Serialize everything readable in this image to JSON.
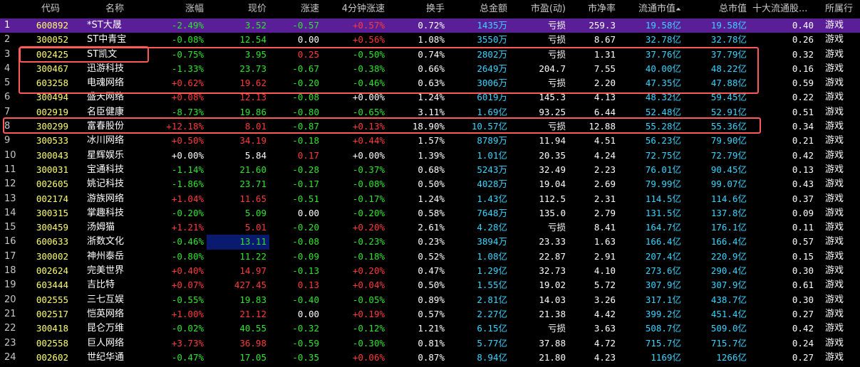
{
  "columns": {
    "code": "代码",
    "name": "名称",
    "pct": "涨幅",
    "price": "现价",
    "speed": "涨速",
    "speed4": "4分钟涨速",
    "turnover": "换手",
    "amount": "总金额",
    "pe": "市盈(动)",
    "pb": "市净率",
    "float_cap": "流通市值",
    "float_cap_sort": "⏶",
    "total_cap": "总市值",
    "top10": "十大流通股...",
    "industry": "所属行"
  },
  "rows": [
    {
      "idx": "1",
      "code": "600892",
      "name": "*ST大晟",
      "pct": "-2.49%",
      "pct_c": "green",
      "price": "3.52",
      "price_c": "green",
      "speed": "-0.57",
      "speed_c": "green",
      "speed4": "+0.57%",
      "speed4_c": "red",
      "turnover": "0.72%",
      "amount": "1435",
      "amount_u": "万",
      "pe": "亏损",
      "pb": "259.3",
      "float_cap": "19.58",
      "float_u": "亿",
      "total_cap": "19.58",
      "total_u": "亿",
      "top10": "0.40",
      "industry": "游戏"
    },
    {
      "idx": "2",
      "code": "300052",
      "name": "ST中青宝",
      "pct": "-0.08%",
      "pct_c": "green",
      "price": "12.54",
      "price_c": "green",
      "speed": "0.00",
      "speed_c": "white",
      "speed4": "+0.56%",
      "speed4_c": "red",
      "turnover": "1.08%",
      "amount": "3550",
      "amount_u": "万",
      "pe": "亏损",
      "pb": "8.67",
      "float_cap": "32.78",
      "float_u": "亿",
      "total_cap": "32.78",
      "total_u": "亿",
      "top10": "0.26",
      "industry": "游戏"
    },
    {
      "idx": "3",
      "code": "002425",
      "name": "ST凯文",
      "pct": "-0.75%",
      "pct_c": "green",
      "price": "3.95",
      "price_c": "green",
      "speed": "0.25",
      "speed_c": "red",
      "speed4": "-0.50%",
      "speed4_c": "green",
      "turnover": "0.74%",
      "amount": "2802",
      "amount_u": "万",
      "pe": "亏损",
      "pb": "1.31",
      "float_cap": "37.76",
      "float_u": "亿",
      "total_cap": "37.79",
      "total_u": "亿",
      "top10": "0.32",
      "industry": "游戏"
    },
    {
      "idx": "4",
      "code": "300467",
      "name": "迅游科技",
      "pct": "-1.33%",
      "pct_c": "green",
      "price": "23.73",
      "price_c": "green",
      "speed": "-0.67",
      "speed_c": "green",
      "speed4": "-0.38%",
      "speed4_c": "green",
      "turnover": "0.66%",
      "amount": "2649",
      "amount_u": "万",
      "pe": "204.7",
      "pb": "7.55",
      "float_cap": "40.00",
      "float_u": "亿",
      "total_cap": "48.22",
      "total_u": "亿",
      "top10": "0.16",
      "industry": "游戏"
    },
    {
      "idx": "5",
      "code": "603258",
      "name": "电魂网络",
      "pct": "+0.62%",
      "pct_c": "red",
      "price": "19.62",
      "price_c": "red",
      "speed": "-0.20",
      "speed_c": "green",
      "speed4": "-0.46%",
      "speed4_c": "green",
      "turnover": "0.63%",
      "amount": "3006",
      "amount_u": "万",
      "pe": "亏损",
      "pb": "2.20",
      "float_cap": "47.35",
      "float_u": "亿",
      "total_cap": "47.88",
      "total_u": "亿",
      "top10": "0.59",
      "industry": "游戏"
    },
    {
      "idx": "6",
      "code": "300494",
      "name": "盛天网络",
      "pct": "+0.08%",
      "pct_c": "red",
      "price": "12.13",
      "price_c": "red",
      "speed": "-0.08",
      "speed_c": "green",
      "speed4": "+0.00%",
      "speed4_c": "white",
      "turnover": "1.24%",
      "amount": "6019",
      "amount_u": "万",
      "pe": "145.3",
      "pb": "4.13",
      "float_cap": "48.32",
      "float_u": "亿",
      "total_cap": "59.45",
      "total_u": "亿",
      "top10": "0.22",
      "industry": "游戏"
    },
    {
      "idx": "7",
      "code": "002919",
      "name": "名臣健康",
      "pct": "-8.73%",
      "pct_c": "green",
      "price": "19.86",
      "price_c": "green",
      "speed": "-0.80",
      "speed_c": "green",
      "speed4": "-0.65%",
      "speed4_c": "green",
      "turnover": "3.11%",
      "amount": "1.69",
      "amount_u": "亿",
      "pe": "93.25",
      "pb": "6.44",
      "float_cap": "52.48",
      "float_u": "亿",
      "total_cap": "52.91",
      "total_u": "亿",
      "top10": "0.51",
      "industry": "游戏"
    },
    {
      "idx": "8",
      "code": "300299",
      "name": "富春股份",
      "pct": "+12.18%",
      "pct_c": "red",
      "price": "8.01",
      "price_c": "red",
      "speed": "-0.87",
      "speed_c": "green",
      "speed4": "+0.13%",
      "speed4_c": "red",
      "turnover": "18.90%",
      "amount": "10.57",
      "amount_u": "亿",
      "pe": "亏损",
      "pb": "12.88",
      "float_cap": "55.28",
      "float_u": "亿",
      "total_cap": "55.36",
      "total_u": "亿",
      "top10": "0.34",
      "industry": "游戏"
    },
    {
      "idx": "9",
      "code": "300533",
      "name": "冰川网络",
      "pct": "+0.50%",
      "pct_c": "red",
      "price": "34.19",
      "price_c": "red",
      "speed": "-0.18",
      "speed_c": "green",
      "speed4": "+0.44%",
      "speed4_c": "red",
      "turnover": "1.57%",
      "amount": "8789",
      "amount_u": "万",
      "pe": "11.94",
      "pb": "4.51",
      "float_cap": "56.23",
      "float_u": "亿",
      "total_cap": "79.90",
      "total_u": "亿",
      "top10": "0.21",
      "industry": "游戏"
    },
    {
      "idx": "10",
      "code": "300043",
      "name": "星辉娱乐",
      "pct": "+0.00%",
      "pct_c": "white",
      "price": "5.84",
      "price_c": "white",
      "speed": "0.17",
      "speed_c": "red",
      "speed4": "+0.00%",
      "speed4_c": "white",
      "turnover": "1.39%",
      "amount": "1.01",
      "amount_u": "亿",
      "pe": "20.35",
      "pb": "4.24",
      "float_cap": "72.75",
      "float_u": "亿",
      "total_cap": "72.79",
      "total_u": "亿",
      "top10": "0.42",
      "industry": "游戏"
    },
    {
      "idx": "11",
      "code": "300031",
      "name": "宝通科技",
      "pct": "-1.14%",
      "pct_c": "green",
      "price": "21.60",
      "price_c": "green",
      "speed": "-0.28",
      "speed_c": "green",
      "speed4": "-0.37%",
      "speed4_c": "green",
      "turnover": "0.68%",
      "amount": "5243",
      "amount_u": "万",
      "pe": "32.49",
      "pb": "2.23",
      "float_cap": "76.01",
      "float_u": "亿",
      "total_cap": "90.45",
      "total_u": "亿",
      "top10": "0.13",
      "industry": "游戏"
    },
    {
      "idx": "12",
      "code": "002605",
      "name": "姚记科技",
      "pct": "-1.86%",
      "pct_c": "green",
      "price": "23.71",
      "price_c": "green",
      "speed": "-0.17",
      "speed_c": "green",
      "speed4": "-0.08%",
      "speed4_c": "green",
      "turnover": "0.50%",
      "amount": "4028",
      "amount_u": "万",
      "pe": "19.04",
      "pb": "2.69",
      "float_cap": "79.99",
      "float_u": "亿",
      "total_cap": "99.07",
      "total_u": "亿",
      "top10": "0.43",
      "industry": "游戏"
    },
    {
      "idx": "13",
      "code": "002174",
      "name": "游族网络",
      "pct": "+1.04%",
      "pct_c": "red",
      "price": "11.65",
      "price_c": "red",
      "speed": "-0.51",
      "speed_c": "green",
      "speed4": "-0.17%",
      "speed4_c": "green",
      "turnover": "1.24%",
      "amount": "1.43",
      "amount_u": "亿",
      "pe": "112.5",
      "pb": "2.31",
      "float_cap": "114.5",
      "float_u": "亿",
      "total_cap": "114.6",
      "total_u": "亿",
      "top10": "0.37",
      "industry": "游戏"
    },
    {
      "idx": "14",
      "code": "300315",
      "name": "掌趣科技",
      "pct": "-0.20%",
      "pct_c": "green",
      "price": "5.09",
      "price_c": "green",
      "speed": "0.00",
      "speed_c": "white",
      "speed4": "-0.20%",
      "speed4_c": "green",
      "turnover": "0.58%",
      "amount": "7648",
      "amount_u": "万",
      "pe": "135.0",
      "pb": "2.79",
      "float_cap": "131.5",
      "float_u": "亿",
      "total_cap": "137.8",
      "total_u": "亿",
      "top10": "0.09",
      "industry": "游戏"
    },
    {
      "idx": "15",
      "code": "300459",
      "name": "汤姆猫",
      "pct": "+1.21%",
      "pct_c": "red",
      "price": "5.01",
      "price_c": "red",
      "speed": "-0.20",
      "speed_c": "green",
      "speed4": "+0.20%",
      "speed4_c": "red",
      "turnover": "2.61%",
      "amount": "4.28",
      "amount_u": "亿",
      "pe": "亏损",
      "pb": "8.41",
      "float_cap": "164.7",
      "float_u": "亿",
      "total_cap": "176.1",
      "total_u": "亿",
      "top10": "0.11",
      "industry": "游戏"
    },
    {
      "idx": "16",
      "code": "600633",
      "name": "浙数文化",
      "pct": "-0.46%",
      "pct_c": "green",
      "price": "13.11",
      "price_c": "green",
      "price_hl": true,
      "speed": "-0.08",
      "speed_c": "green",
      "speed4": "-0.23%",
      "speed4_c": "green",
      "turnover": "0.23%",
      "amount": "3894",
      "amount_u": "万",
      "pe": "23.33",
      "pb": "1.63",
      "float_cap": "166.4",
      "float_u": "亿",
      "total_cap": "166.4",
      "total_u": "亿",
      "top10": "0.57",
      "industry": "游戏"
    },
    {
      "idx": "17",
      "code": "300002",
      "name": "神州泰岳",
      "pct": "-0.80%",
      "pct_c": "green",
      "price": "11.22",
      "price_c": "green",
      "speed": "-0.09",
      "speed_c": "green",
      "speed4": "-0.18%",
      "speed4_c": "green",
      "turnover": "0.52%",
      "amount": "1.08",
      "amount_u": "亿",
      "pe": "22.87",
      "pb": "2.91",
      "float_cap": "207.4",
      "float_u": "亿",
      "total_cap": "220.9",
      "total_u": "亿",
      "top10": "0.15",
      "industry": "游戏"
    },
    {
      "idx": "18",
      "code": "002624",
      "name": "完美世界",
      "pct": "+0.40%",
      "pct_c": "red",
      "price": "14.97",
      "price_c": "red",
      "speed": "-0.13",
      "speed_c": "green",
      "speed4": "+0.20%",
      "speed4_c": "red",
      "turnover": "0.47%",
      "amount": "1.29",
      "amount_u": "亿",
      "pe": "32.73",
      "pb": "4.10",
      "float_cap": "273.6",
      "float_u": "亿",
      "total_cap": "290.4",
      "total_u": "亿",
      "top10": "0.30",
      "industry": "游戏"
    },
    {
      "idx": "19",
      "code": "603444",
      "name": "吉比特",
      "pct": "+0.07%",
      "pct_c": "red",
      "price": "427.45",
      "price_c": "red",
      "speed": "0.13",
      "speed_c": "red",
      "speed4": "+0.04%",
      "speed4_c": "red",
      "turnover": "0.50%",
      "amount": "1.55",
      "amount_u": "亿",
      "pe": "19.02",
      "pb": "5.72",
      "float_cap": "307.9",
      "float_u": "亿",
      "total_cap": "307.9",
      "total_u": "亿",
      "top10": "0.61",
      "industry": "游戏"
    },
    {
      "idx": "20",
      "code": "002555",
      "name": "三七互娱",
      "pct": "-0.55%",
      "pct_c": "green",
      "price": "19.83",
      "price_c": "green",
      "speed": "-0.40",
      "speed_c": "green",
      "speed4": "-0.05%",
      "speed4_c": "green",
      "turnover": "0.89%",
      "amount": "2.81",
      "amount_u": "亿",
      "pe": "14.03",
      "pb": "3.26",
      "float_cap": "317.1",
      "float_u": "亿",
      "total_cap": "438.7",
      "total_u": "亿",
      "top10": "0.30",
      "industry": "游戏"
    },
    {
      "idx": "21",
      "code": "002517",
      "name": "恺英网络",
      "pct": "+1.00%",
      "pct_c": "red",
      "price": "21.12",
      "price_c": "red",
      "speed": "0.00",
      "speed_c": "white",
      "speed4": "+0.19%",
      "speed4_c": "red",
      "turnover": "0.57%",
      "amount": "2.27",
      "amount_u": "亿",
      "pe": "21.38",
      "pb": "4.42",
      "float_cap": "399.2",
      "float_u": "亿",
      "total_cap": "451.4",
      "total_u": "亿",
      "top10": "0.27",
      "industry": "游戏"
    },
    {
      "idx": "22",
      "code": "300418",
      "name": "昆仑万维",
      "pct": "-0.02%",
      "pct_c": "green",
      "price": "40.55",
      "price_c": "green",
      "speed": "-0.32",
      "speed_c": "green",
      "speed4": "-0.12%",
      "speed4_c": "green",
      "turnover": "1.21%",
      "amount": "6.15",
      "amount_u": "亿",
      "pe": "亏损",
      "pb": "3.63",
      "float_cap": "508.7",
      "float_u": "亿",
      "total_cap": "509.0",
      "total_u": "亿",
      "top10": "0.42",
      "industry": "游戏"
    },
    {
      "idx": "23",
      "code": "002558",
      "name": "巨人网络",
      "pct": "+3.73%",
      "pct_c": "red",
      "price": "36.98",
      "price_c": "red",
      "speed": "-0.59",
      "speed_c": "green",
      "speed4": "-0.30%",
      "speed4_c": "green",
      "turnover": "0.81%",
      "amount": "5.77",
      "amount_u": "亿",
      "pe": "37.88",
      "pb": "4.72",
      "float_cap": "715.7",
      "float_u": "亿",
      "total_cap": "715.7",
      "total_u": "亿",
      "top10": "0.24",
      "industry": "游戏"
    },
    {
      "idx": "24",
      "code": "002602",
      "name": "世纪华通",
      "pct": "-0.47%",
      "pct_c": "green",
      "price": "17.05",
      "price_c": "green",
      "speed": "-0.35",
      "speed_c": "green",
      "speed4": "+0.06%",
      "speed4_c": "red",
      "turnover": "0.87%",
      "amount": "8.94",
      "amount_u": "亿",
      "pe": "21.80",
      "pb": "4.23",
      "float_cap": "1169",
      "float_u": "亿",
      "total_cap": "1266",
      "total_u": "亿",
      "top10": "0.27",
      "industry": "游戏"
    }
  ],
  "colors": {
    "background": "#000000",
    "selected_row": "#5a1e96",
    "up": "#ff3a3a",
    "down": "#2de62d",
    "code": "#ffff6e",
    "cap": "#38d6ff",
    "annotation_box": "#ff5a5a"
  }
}
